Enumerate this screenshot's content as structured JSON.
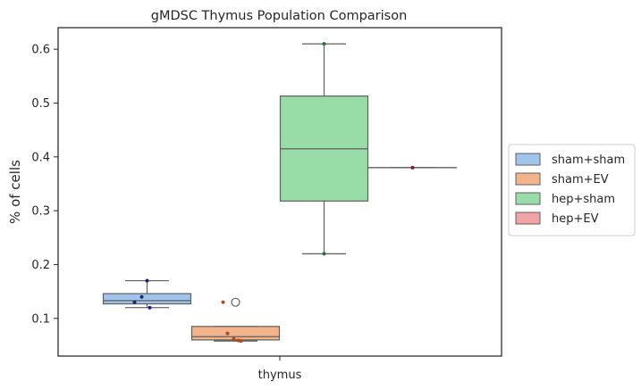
{
  "chart_data": {
    "type": "box",
    "title": "gMDSC Thymus Population Comparison",
    "xlabel": "",
    "ylabel": "% of cells",
    "categories": [
      "thymus"
    ],
    "ylim": [
      0.03,
      0.64
    ],
    "yticks": [
      0.1,
      0.2,
      0.3,
      0.4,
      0.5,
      0.6
    ],
    "ytick_labels": [
      "0.1",
      "0.2",
      "0.3",
      "0.4",
      "0.5",
      "0.6"
    ],
    "legend_position": "center-right-outside",
    "series": [
      {
        "name": "sham+sham",
        "color": "#a1c4ea",
        "point_color": "#1a237e",
        "box": {
          "whislo": 0.12,
          "q1": 0.127,
          "med": 0.133,
          "q3": 0.146,
          "whishi": 0.17
        },
        "fliers": [],
        "points": [
          0.17,
          0.14,
          0.13,
          0.12
        ]
      },
      {
        "name": "sham+EV",
        "color": "#f3b48c",
        "point_color": "#b54a17",
        "box": {
          "whislo": 0.058,
          "q1": 0.06,
          "med": 0.066,
          "q3": 0.085,
          "whishi": 0.085
        },
        "fliers": [
          0.13
        ],
        "points": [
          0.13,
          0.072,
          0.062,
          0.059,
          0.058
        ]
      },
      {
        "name": "hep+sham",
        "color": "#98dca8",
        "point_color": "#1b7a2a",
        "box": {
          "whislo": 0.22,
          "q1": 0.318,
          "med": 0.415,
          "q3": 0.513,
          "whishi": 0.61
        },
        "fliers": [],
        "points": [
          0.61,
          0.22
        ]
      },
      {
        "name": "hep+EV",
        "color": "#f2a3a3",
        "point_color": "#8b1a1a",
        "box": {
          "whislo": 0.38,
          "q1": 0.38,
          "med": 0.38,
          "q3": 0.38,
          "whishi": 0.38
        },
        "fliers": [],
        "points": [
          0.38
        ]
      }
    ]
  }
}
